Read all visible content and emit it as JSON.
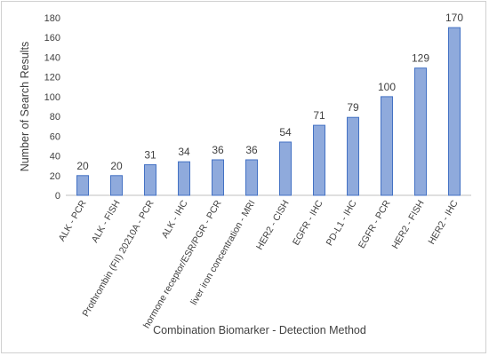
{
  "chart_data": {
    "type": "bar",
    "xlabel": "Combination Biomarker - Detection Method",
    "ylabel": "Number of Search Results",
    "ylim": [
      0,
      180
    ],
    "yticks": [
      0,
      20,
      40,
      60,
      80,
      100,
      120,
      140,
      160,
      180
    ],
    "grid": false,
    "legend": "none",
    "categories": [
      "ALK - PCR",
      "ALK - FISH",
      "Prothrombin (FII) 20210A - PCR",
      "ALK - IHC",
      "hormone receptor/ESR/PGR - PCR",
      "liver iron concentration - MRI",
      "HER2 - CISH",
      "EGFR - IHC",
      "PD-L1 - IHC",
      "EGFR - PCR",
      "HER2 - FISH",
      "HER2 - IHC"
    ],
    "values": [
      20,
      20,
      31,
      34,
      36,
      36,
      54,
      71,
      79,
      100,
      129,
      170
    ],
    "data_labels": [
      "20",
      "20",
      "31",
      "34",
      "36",
      "36",
      "54",
      "71",
      "79",
      "100",
      "129",
      "170"
    ],
    "colors": {
      "bar_fill": "#8faadc",
      "bar_stroke": "#4472c4",
      "axis": "#bfbfbf",
      "text": "#404040"
    }
  }
}
